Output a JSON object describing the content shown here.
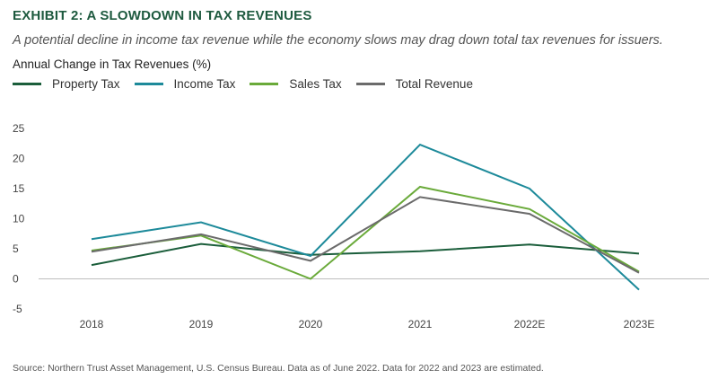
{
  "header": {
    "title": "EXHIBIT 2: A SLOWDOWN IN TAX REVENUES",
    "subtitle": "A potential decline in income tax revenue while the economy slows may drag down total tax revenues for issuers.",
    "measure_label": "Annual Change in Tax Revenues (%)"
  },
  "footer": {
    "source": "Source: Northern Trust Asset Management, U.S. Census Bureau. Data as of June 2022. Data for 2022 and 2023 are estimated."
  },
  "chart_data": {
    "type": "line",
    "title": "",
    "xlabel": "",
    "ylabel": "Annual Change in Tax Revenues (%)",
    "ylim": [
      -5,
      25
    ],
    "yticks": [
      25,
      20,
      15,
      10,
      5,
      0,
      -5
    ],
    "grid": false,
    "legend_position": "top-left",
    "categories": [
      "2018",
      "2019",
      "2020",
      "2021",
      "2022E",
      "2023E"
    ],
    "series": [
      {
        "name": "Property Tax",
        "color": "#1b5e3b",
        "values": [
          2.3,
          5.8,
          4.0,
          4.6,
          5.7,
          4.2
        ]
      },
      {
        "name": "Income Tax",
        "color": "#1d8a9a",
        "values": [
          6.6,
          9.4,
          3.8,
          22.3,
          15.0,
          -1.8
        ]
      },
      {
        "name": "Sales Tax",
        "color": "#6aaa3a",
        "values": [
          4.7,
          7.2,
          0.0,
          15.3,
          11.6,
          1.2
        ]
      },
      {
        "name": "Total Revenue",
        "color": "#6b6b6b",
        "values": [
          4.5,
          7.4,
          3.0,
          13.6,
          10.8,
          1.0
        ]
      }
    ]
  }
}
